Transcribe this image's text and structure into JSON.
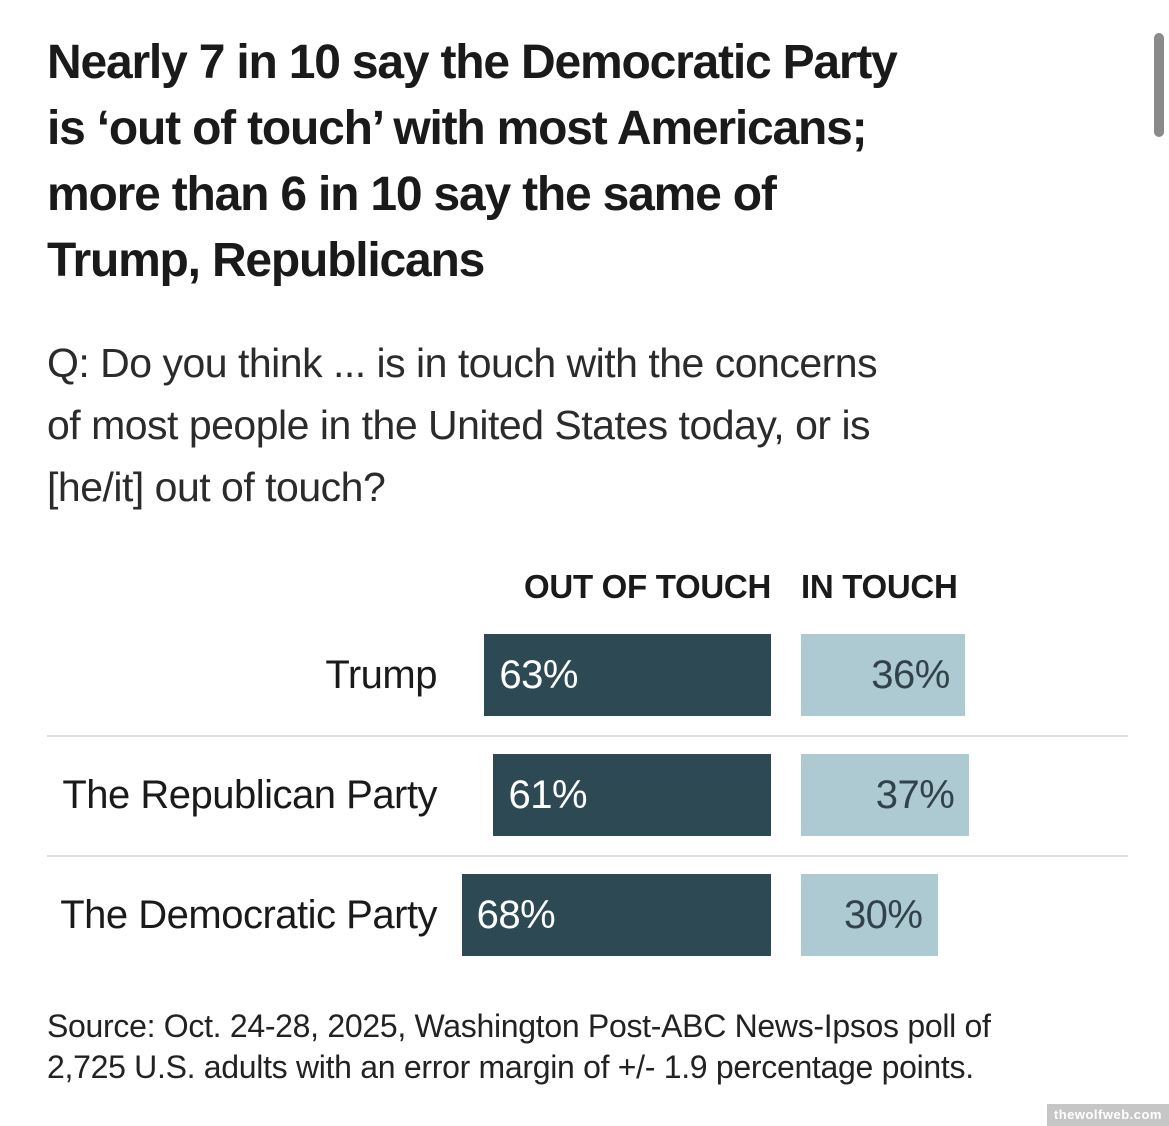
{
  "page": {
    "title_lines": [
      "Nearly 7 in 10 say the Democratic Party",
      "is ‘out of touch’ with most Americans;",
      "more than 6 in 10 say the same of",
      "Trump, Republicans"
    ],
    "question_lines": [
      "Q: Do you think ... is in touch with the concerns",
      "of most people in the United States today, or is",
      "[he/it] out of touch?"
    ],
    "source_lines": [
      "Source: Oct. 24-28, 2025, Washington Post-ABC News-Ipsos poll of",
      "2,725 U.S. adults with an error margin of +/- 1.9 percentage points."
    ],
    "watermark": "thewolfweb.com"
  },
  "chart_data": {
    "type": "bar",
    "orientation": "horizontal",
    "title": "Nearly 7 in 10 say the Democratic Party is ‘out of touch’ with most Americans; more than 6 in 10 say the same of Trump, Republicans",
    "subtitle": "Q: Do you think ... is in touch with the concerns of most people in the United States today, or is [he/it] out of touch?",
    "categories": [
      "Trump",
      "The Republican Party",
      "The Democratic Party"
    ],
    "series": [
      {
        "name": "OUT OF TOUCH",
        "values": [
          63,
          61,
          68
        ],
        "color": "#2d4a54",
        "value_label_color": "#ffffff",
        "bar_alignment": "right"
      },
      {
        "name": "IN TOUCH",
        "values": [
          36,
          37,
          30
        ],
        "color": "#adc9d1",
        "value_label_color": "#32424a",
        "bar_alignment": "left"
      }
    ],
    "value_suffix": "%",
    "xlim": [
      0,
      100
    ],
    "grid": false,
    "axes_visible": false,
    "legend_position": "column-headers-top",
    "source": "Source: Oct. 24-28, 2025, Washington Post-ABC News-Ipsos poll of 2,725 U.S. adults with an error margin of +/- 1.9 percentage points."
  },
  "colors": {
    "background": "#ffffff",
    "title_text": "#1a1a1a",
    "question_text": "#2b2b2b",
    "bar_dark": "#2d4a54",
    "bar_light": "#adc9d1",
    "pct_on_dark": "#ffffff",
    "pct_on_light": "#32424a",
    "divider": "#dedede",
    "source_text": "#222222",
    "watermark_bg": "#c6c6c6",
    "watermark_text": "#ffffff",
    "scrollbar_thumb": "#8a8a8a"
  }
}
